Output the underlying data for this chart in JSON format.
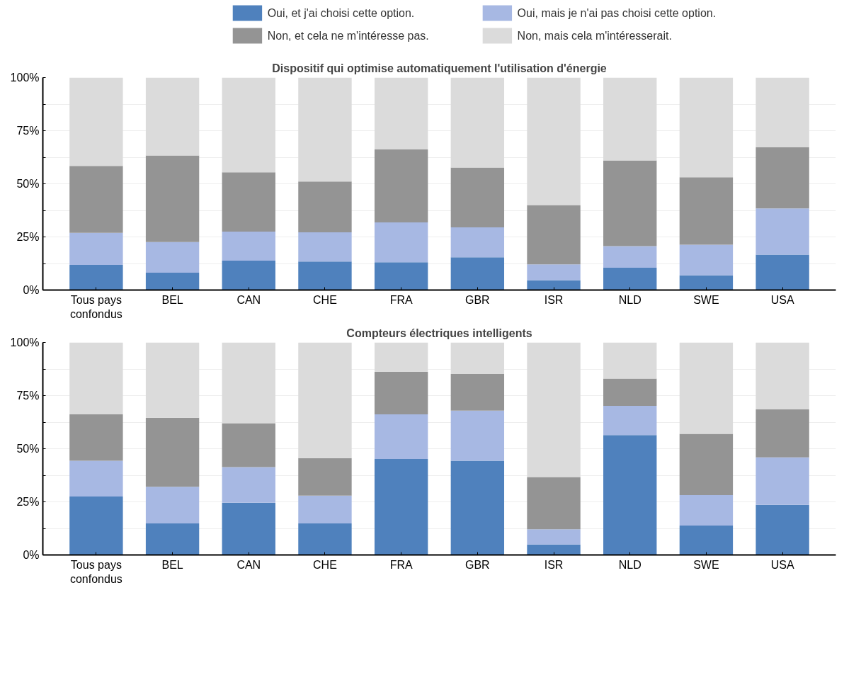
{
  "chart_data": [
    {
      "type": "bar",
      "stacked": true,
      "title": "Dispositif qui optimise automatiquement l'utilisation d'énergie",
      "categories": [
        "Tous pays\nconfondus",
        "BEL",
        "CAN",
        "CHE",
        "FRA",
        "GBR",
        "ISR",
        "NLD",
        "SWE",
        "USA"
      ],
      "series": [
        {
          "name": "Oui, et j'ai choisi cette option.",
          "color": "#4f81bd",
          "values": [
            11.8,
            8.2,
            13.8,
            13.4,
            13.1,
            15.4,
            4.6,
            10.5,
            6.9,
            16.7
          ]
        },
        {
          "name": "Oui, mais je n'ai pas choisi cette option.",
          "color": "#a7b8e3",
          "values": [
            15.1,
            14.4,
            13.7,
            13.8,
            18.7,
            14.1,
            7.5,
            10.2,
            14.4,
            21.7
          ]
        },
        {
          "name": "Non, et cela ne m'intéresse pas.",
          "color": "#949494",
          "values": [
            31.5,
            40.7,
            27.9,
            23.9,
            34.4,
            28.2,
            27.9,
            40.3,
            31.8,
            28.8
          ]
        },
        {
          "name": "Non, mais cela m'intéresserait.",
          "color": "#dbdbdb",
          "values": [
            41.6,
            36.7,
            44.6,
            48.9,
            33.8,
            42.3,
            60.0,
            39.0,
            46.9,
            32.8
          ]
        }
      ],
      "ylim": [
        0,
        100
      ],
      "yticks": [
        {
          "value": 0,
          "label": "0%"
        },
        {
          "value": 12.5,
          "label": null
        },
        {
          "value": 25,
          "label": "25%"
        },
        {
          "value": 37.5,
          "label": null
        },
        {
          "value": 50,
          "label": "50%"
        },
        {
          "value": 62.5,
          "label": null
        },
        {
          "value": 75,
          "label": "75%"
        },
        {
          "value": 87.5,
          "label": null
        },
        {
          "value": 100,
          "label": "100%"
        }
      ],
      "grid": "y",
      "legend": "top"
    },
    {
      "type": "bar",
      "stacked": true,
      "title": "Compteurs électriques intelligents",
      "categories": [
        "Tous pays\nconfondus",
        "BEL",
        "CAN",
        "CHE",
        "FRA",
        "GBR",
        "ISR",
        "NLD",
        "SWE",
        "USA"
      ],
      "series": [
        {
          "color": "#4f81bd",
          "values": [
            27.5,
            14.8,
            24.6,
            14.8,
            45.2,
            44.3,
            4.9,
            56.4,
            13.8,
            23.6
          ]
        },
        {
          "color": "#a7b8e3",
          "values": [
            16.8,
            17.3,
            16.7,
            13.1,
            21.0,
            23.6,
            7.2,
            13.8,
            14.4,
            22.3
          ]
        },
        {
          "color": "#949494",
          "values": [
            21.9,
            32.5,
            20.7,
            17.7,
            20.0,
            17.3,
            24.6,
            12.8,
            28.8,
            22.6
          ]
        },
        {
          "color": "#dbdbdb",
          "values": [
            33.8,
            35.4,
            38.0,
            54.4,
            13.8,
            14.8,
            63.3,
            17.0,
            43.0,
            31.5
          ]
        }
      ],
      "ylim": [
        0,
        100
      ],
      "yticks": [
        {
          "value": 0,
          "label": "0%"
        },
        {
          "value": 12.5,
          "label": null
        },
        {
          "value": 25,
          "label": "25%"
        },
        {
          "value": 37.5,
          "label": null
        },
        {
          "value": 50,
          "label": "50%"
        },
        {
          "value": 62.5,
          "label": null
        },
        {
          "value": 75,
          "label": "75%"
        },
        {
          "value": 87.5,
          "label": null
        },
        {
          "value": 100,
          "label": "100%"
        }
      ],
      "grid": "y"
    }
  ]
}
